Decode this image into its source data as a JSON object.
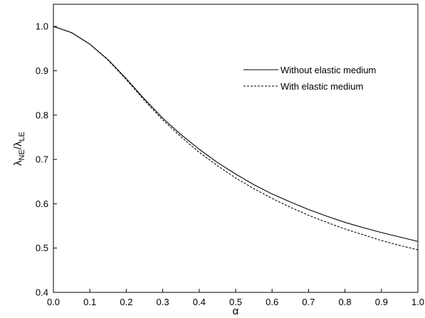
{
  "chart_data": {
    "type": "line",
    "title": "",
    "xlabel": "α",
    "ylabel": {
      "main": "λ",
      "sub1": "NE",
      "sep": "/λ",
      "sub2": "LE"
    },
    "xlim": [
      0.0,
      1.0
    ],
    "ylim": [
      0.4,
      1.05
    ],
    "xticks": [
      0.0,
      0.1,
      0.2,
      0.3,
      0.4,
      0.5,
      0.6,
      0.7,
      0.8,
      0.9,
      1.0
    ],
    "yticks": [
      0.4,
      0.5,
      0.6,
      0.7,
      0.8,
      0.9,
      1.0
    ],
    "xtick_labels": [
      "0.0",
      "0.1",
      "0.2",
      "0.3",
      "0.4",
      "0.5",
      "0.6",
      "0.7",
      "0.8",
      "0.9",
      "1.0"
    ],
    "ytick_labels": [
      "0.4",
      "0.5",
      "0.6",
      "0.7",
      "0.8",
      "0.9",
      "1.0"
    ],
    "grid": false,
    "legend_position": "upper-right",
    "series": [
      {
        "name": "Without elastic medium",
        "style": "solid",
        "color": "#000000",
        "x": [
          0.0,
          0.05,
          0.1,
          0.15,
          0.2,
          0.25,
          0.3,
          0.35,
          0.4,
          0.45,
          0.5,
          0.55,
          0.6,
          0.65,
          0.7,
          0.75,
          0.8,
          0.85,
          0.9,
          0.95,
          1.0
        ],
        "y": [
          1.0,
          0.986,
          0.96,
          0.925,
          0.882,
          0.836,
          0.793,
          0.756,
          0.723,
          0.693,
          0.667,
          0.643,
          0.622,
          0.604,
          0.587,
          0.572,
          0.558,
          0.546,
          0.535,
          0.525,
          0.515
        ]
      },
      {
        "name": "With elastic medium",
        "style": "dashed",
        "color": "#000000",
        "x": [
          0.0,
          0.05,
          0.1,
          0.15,
          0.2,
          0.25,
          0.3,
          0.35,
          0.4,
          0.45,
          0.5,
          0.55,
          0.6,
          0.65,
          0.7,
          0.75,
          0.8,
          0.85,
          0.9,
          0.95,
          1.0
        ],
        "y": [
          1.0,
          0.986,
          0.96,
          0.924,
          0.88,
          0.833,
          0.789,
          0.751,
          0.716,
          0.686,
          0.658,
          0.634,
          0.612,
          0.592,
          0.574,
          0.558,
          0.543,
          0.53,
          0.517,
          0.506,
          0.496
        ]
      }
    ]
  }
}
